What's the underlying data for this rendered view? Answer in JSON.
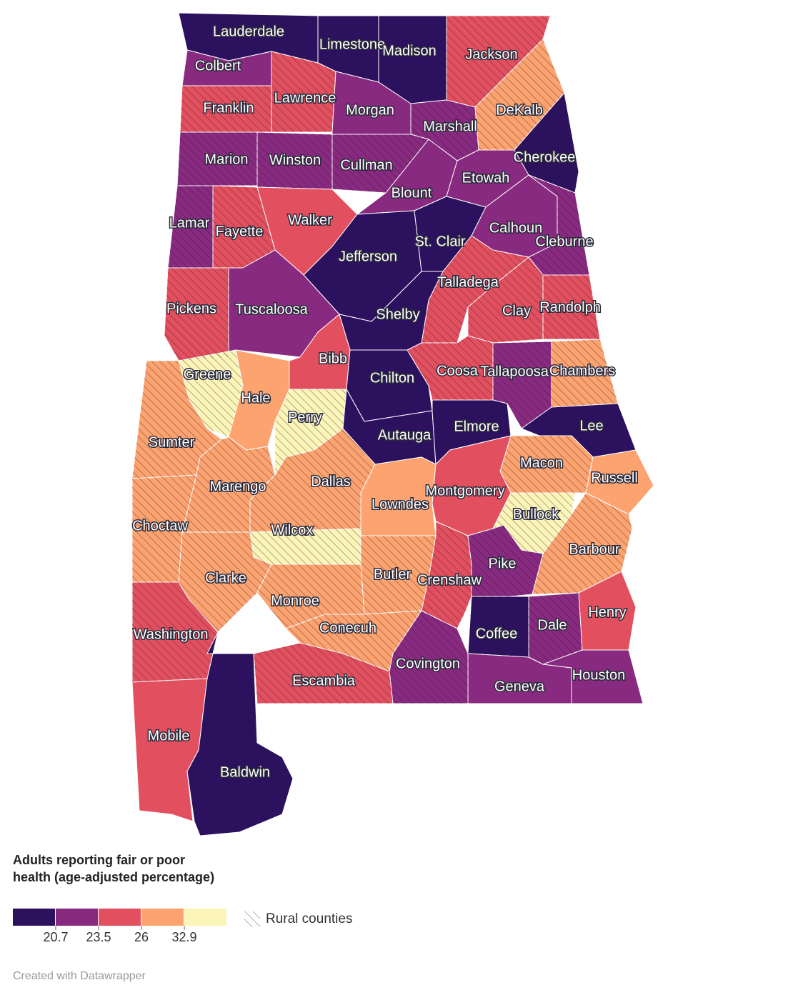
{
  "map": {
    "legend": {
      "title": "Adults reporting fair or poor health (age-adjusted percentage)",
      "colors": [
        "#2c115f",
        "#882a80",
        "#e2505f",
        "#fca36f",
        "#fbf6b8"
      ],
      "ticks": [
        20.7,
        23.5,
        26,
        32.9
      ],
      "rural_label": "Rural counties"
    },
    "counties": [
      {
        "name": "Lauderdale",
        "color": "#2c115f",
        "rural": false
      },
      {
        "name": "Colbert",
        "color": "#882a80",
        "rural": false
      },
      {
        "name": "Limestone",
        "color": "#2c115f",
        "rural": false
      },
      {
        "name": "Madison",
        "color": "#2c115f",
        "rural": false
      },
      {
        "name": "Jackson",
        "color": "#e2505f",
        "rural": true
      },
      {
        "name": "Franklin",
        "color": "#e2505f",
        "rural": true
      },
      {
        "name": "Lawrence",
        "color": "#e2505f",
        "rural": true
      },
      {
        "name": "Morgan",
        "color": "#882a80",
        "rural": false
      },
      {
        "name": "Marshall",
        "color": "#882a80",
        "rural": true
      },
      {
        "name": "DeKalb",
        "color": "#fca36f",
        "rural": true
      },
      {
        "name": "Cherokee",
        "color": "#2c115f",
        "rural": true
      },
      {
        "name": "Marion",
        "color": "#882a80",
        "rural": true
      },
      {
        "name": "Winston",
        "color": "#882a80",
        "rural": true
      },
      {
        "name": "Cullman",
        "color": "#882a80",
        "rural": true
      },
      {
        "name": "Blount",
        "color": "#882a80",
        "rural": false
      },
      {
        "name": "Etowah",
        "color": "#882a80",
        "rural": false
      },
      {
        "name": "Lamar",
        "color": "#882a80",
        "rural": true
      },
      {
        "name": "Fayette",
        "color": "#e2505f",
        "rural": true
      },
      {
        "name": "Walker",
        "color": "#e2505f",
        "rural": false
      },
      {
        "name": "Jefferson",
        "color": "#2c115f",
        "rural": false
      },
      {
        "name": "St. Clair",
        "color": "#2c115f",
        "rural": false
      },
      {
        "name": "Calhoun",
        "color": "#882a80",
        "rural": false
      },
      {
        "name": "Cleburne",
        "color": "#882a80",
        "rural": true
      },
      {
        "name": "Pickens",
        "color": "#e2505f",
        "rural": true
      },
      {
        "name": "Tuscaloosa",
        "color": "#882a80",
        "rural": false
      },
      {
        "name": "Talladega",
        "color": "#e2505f",
        "rural": true
      },
      {
        "name": "Shelby",
        "color": "#2c115f",
        "rural": false
      },
      {
        "name": "Clay",
        "color": "#e2505f",
        "rural": true
      },
      {
        "name": "Randolph",
        "color": "#e2505f",
        "rural": true
      },
      {
        "name": "Bibb",
        "color": "#e2505f",
        "rural": false
      },
      {
        "name": "Greene",
        "color": "#fbf6b8",
        "rural": true
      },
      {
        "name": "Hale",
        "color": "#fca36f",
        "rural": false
      },
      {
        "name": "Perry",
        "color": "#fbf6b8",
        "rural": true
      },
      {
        "name": "Chilton",
        "color": "#2c115f",
        "rural": false
      },
      {
        "name": "Coosa",
        "color": "#e2505f",
        "rural": true
      },
      {
        "name": "Tallapoosa",
        "color": "#882a80",
        "rural": true
      },
      {
        "name": "Chambers",
        "color": "#fca36f",
        "rural": true
      },
      {
        "name": "Sumter",
        "color": "#fca36f",
        "rural": true
      },
      {
        "name": "Autauga",
        "color": "#2c115f",
        "rural": false
      },
      {
        "name": "Elmore",
        "color": "#2c115f",
        "rural": false
      },
      {
        "name": "Lee",
        "color": "#2c115f",
        "rural": false
      },
      {
        "name": "Macon",
        "color": "#fca36f",
        "rural": true
      },
      {
        "name": "Russell",
        "color": "#fca36f",
        "rural": false
      },
      {
        "name": "Marengo",
        "color": "#fca36f",
        "rural": true
      },
      {
        "name": "Dallas",
        "color": "#fca36f",
        "rural": true
      },
      {
        "name": "Lowndes",
        "color": "#fca36f",
        "rural": false
      },
      {
        "name": "Montgomery",
        "color": "#e2505f",
        "rural": false
      },
      {
        "name": "Bullock",
        "color": "#fbf6b8",
        "rural": true
      },
      {
        "name": "Choctaw",
        "color": "#fca36f",
        "rural": true
      },
      {
        "name": "Wilcox",
        "color": "#fbf6b8",
        "rural": true
      },
      {
        "name": "Barbour",
        "color": "#fca36f",
        "rural": true
      },
      {
        "name": "Clarke",
        "color": "#fca36f",
        "rural": true
      },
      {
        "name": "Butler",
        "color": "#fca36f",
        "rural": true
      },
      {
        "name": "Crenshaw",
        "color": "#e2505f",
        "rural": true
      },
      {
        "name": "Pike",
        "color": "#882a80",
        "rural": true
      },
      {
        "name": "Monroe",
        "color": "#fca36f",
        "rural": true
      },
      {
        "name": "Henry",
        "color": "#e2505f",
        "rural": false
      },
      {
        "name": "Dale",
        "color": "#882a80",
        "rural": true
      },
      {
        "name": "Coffee",
        "color": "#2c115f",
        "rural": true
      },
      {
        "name": "Washington",
        "color": "#e2505f",
        "rural": true
      },
      {
        "name": "Conecuh",
        "color": "#fca36f",
        "rural": true
      },
      {
        "name": "Covington",
        "color": "#882a80",
        "rural": true
      },
      {
        "name": "Geneva",
        "color": "#882a80",
        "rural": false
      },
      {
        "name": "Houston",
        "color": "#882a80",
        "rural": false
      },
      {
        "name": "Escambia",
        "color": "#e2505f",
        "rural": true
      },
      {
        "name": "Mobile",
        "color": "#e2505f",
        "rural": false
      },
      {
        "name": "Baldwin",
        "color": "#2c115f",
        "rural": false
      }
    ],
    "footer": "Created with Datawrapper"
  }
}
